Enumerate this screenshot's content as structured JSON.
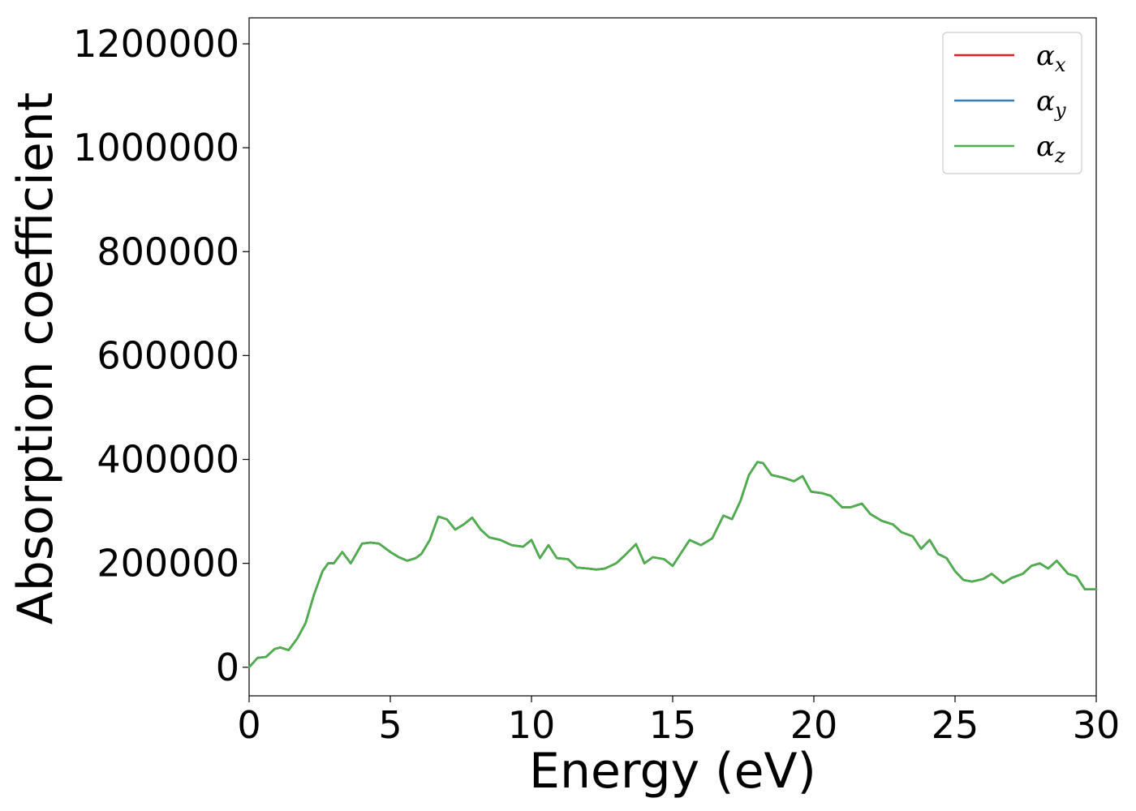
{
  "chart_data": {
    "type": "line",
    "title": "",
    "xlabel": "Energy (eV)",
    "ylabel": "Absorption coefficient",
    "xlim": [
      0,
      30
    ],
    "ylim": [
      -55000,
      1250000
    ],
    "xticks": [
      0,
      5,
      10,
      15,
      20,
      25,
      30
    ],
    "xtick_labels": [
      "0",
      "5",
      "10",
      "15",
      "20",
      "25",
      "30"
    ],
    "yticks": [
      0,
      200000,
      400000,
      600000,
      800000,
      1000000,
      1200000
    ],
    "ytick_labels": [
      "0",
      "200000",
      "400000",
      "600000",
      "800000",
      "1000000",
      "1200000"
    ],
    "grid": false,
    "legend_position": "top-right",
    "colors": {
      "alpha_x": "#e41a1c",
      "alpha_y": "#377eb8",
      "alpha_z": "#4daf4a"
    },
    "x": [
      0,
      0.3,
      0.6,
      0.9,
      1.1,
      1.4,
      1.7,
      2.0,
      2.3,
      2.6,
      2.8,
      3.0,
      3.3,
      3.6,
      4.0,
      4.3,
      4.6,
      5.0,
      5.3,
      5.6,
      5.9,
      6.1,
      6.4,
      6.7,
      7.0,
      7.3,
      7.6,
      7.9,
      8.2,
      8.5,
      8.9,
      9.3,
      9.7,
      10.0,
      10.3,
      10.6,
      10.9,
      11.3,
      11.6,
      12.0,
      12.3,
      12.6,
      13.0,
      13.3,
      13.7,
      14.0,
      14.3,
      14.7,
      15.0,
      15.3,
      15.6,
      16.0,
      16.4,
      16.8,
      17.1,
      17.4,
      17.7,
      18.0,
      18.2,
      18.5,
      18.9,
      19.3,
      19.6,
      19.9,
      20.3,
      20.6,
      21.0,
      21.3,
      21.7,
      22.0,
      22.4,
      22.8,
      23.1,
      23.5,
      23.8,
      24.1,
      24.4,
      24.7,
      25.0,
      25.3,
      25.6,
      26.0,
      26.3,
      26.7,
      27.0,
      27.4,
      27.7,
      28.0,
      28.3,
      28.6,
      29.0,
      29.3,
      29.6,
      30.0
    ],
    "series": [
      {
        "name": "αx",
        "values": [
          0,
          18000,
          20000,
          35000,
          38000,
          33000,
          55000,
          85000,
          140000,
          185000,
          200000,
          200000,
          222000,
          200000,
          238000,
          240000,
          238000,
          222000,
          212000,
          205000,
          210000,
          218000,
          245000,
          290000,
          285000,
          265000,
          275000,
          288000,
          265000,
          250000,
          245000,
          235000,
          232000,
          245000,
          210000,
          235000,
          210000,
          208000,
          192000,
          190000,
          188000,
          190000,
          200000,
          215000,
          237000,
          200000,
          212000,
          208000,
          195000,
          220000,
          245000,
          235000,
          248000,
          292000,
          285000,
          320000,
          370000,
          395000,
          393000,
          370000,
          365000,
          358000,
          368000,
          338000,
          335000,
          330000,
          308000,
          308000,
          315000,
          295000,
          282000,
          275000,
          260000,
          252000,
          228000,
          245000,
          218000,
          210000,
          185000,
          168000,
          165000,
          170000,
          180000,
          162000,
          172000,
          180000,
          195000,
          200000,
          190000,
          205000,
          180000,
          175000,
          150000,
          150000
        ]
      },
      {
        "name": "αy",
        "values": [
          0,
          18000,
          20000,
          35000,
          38000,
          33000,
          55000,
          85000,
          140000,
          185000,
          200000,
          200000,
          222000,
          200000,
          238000,
          240000,
          238000,
          222000,
          212000,
          205000,
          210000,
          218000,
          245000,
          290000,
          285000,
          265000,
          275000,
          288000,
          265000,
          250000,
          245000,
          235000,
          232000,
          245000,
          210000,
          235000,
          210000,
          208000,
          192000,
          190000,
          188000,
          190000,
          200000,
          215000,
          237000,
          200000,
          212000,
          208000,
          195000,
          220000,
          245000,
          235000,
          248000,
          292000,
          285000,
          320000,
          370000,
          395000,
          393000,
          370000,
          365000,
          358000,
          368000,
          338000,
          335000,
          330000,
          308000,
          308000,
          315000,
          295000,
          282000,
          275000,
          260000,
          252000,
          228000,
          245000,
          218000,
          210000,
          185000,
          168000,
          165000,
          170000,
          180000,
          162000,
          172000,
          180000,
          195000,
          200000,
          190000,
          205000,
          180000,
          175000,
          150000,
          150000
        ]
      },
      {
        "name": "αz",
        "values": [
          0,
          18000,
          20000,
          35000,
          38000,
          33000,
          55000,
          85000,
          140000,
          185000,
          200000,
          200000,
          222000,
          200000,
          238000,
          240000,
          238000,
          222000,
          212000,
          205000,
          210000,
          218000,
          245000,
          290000,
          285000,
          265000,
          275000,
          288000,
          265000,
          250000,
          245000,
          235000,
          232000,
          245000,
          210000,
          235000,
          210000,
          208000,
          192000,
          190000,
          188000,
          190000,
          200000,
          215000,
          237000,
          200000,
          212000,
          208000,
          195000,
          220000,
          245000,
          235000,
          248000,
          292000,
          285000,
          320000,
          370000,
          395000,
          393000,
          370000,
          365000,
          358000,
          368000,
          338000,
          335000,
          330000,
          308000,
          308000,
          315000,
          295000,
          282000,
          275000,
          260000,
          252000,
          228000,
          245000,
          218000,
          210000,
          185000,
          168000,
          165000,
          170000,
          180000,
          162000,
          172000,
          180000,
          195000,
          200000,
          190000,
          205000,
          180000,
          175000,
          150000,
          150000
        ]
      }
    ],
    "legend": [
      {
        "symbol": "α",
        "sub": "x"
      },
      {
        "symbol": "α",
        "sub": "y"
      },
      {
        "symbol": "α",
        "sub": "z"
      }
    ]
  }
}
